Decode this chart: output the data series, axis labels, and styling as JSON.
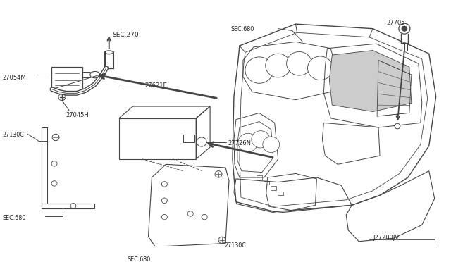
{
  "bg_color": "#ffffff",
  "line_color": "#444444",
  "text_color": "#222222",
  "fig_width": 6.4,
  "fig_height": 3.72,
  "dpi": 100,
  "labels": {
    "SEC270": "SEC.270",
    "27621E": "27621E",
    "27054M": "27054M",
    "27045H": "27045H",
    "27130C_left": "27130C",
    "27726N": "27726N",
    "SEC680_left": "SEC.680",
    "SEC680_bottom": "SEC.680",
    "27130C_bottom": "27130C",
    "SEC680_dash": "SEC.680",
    "27705": "27705",
    "J27200JV": "J27200JV"
  }
}
